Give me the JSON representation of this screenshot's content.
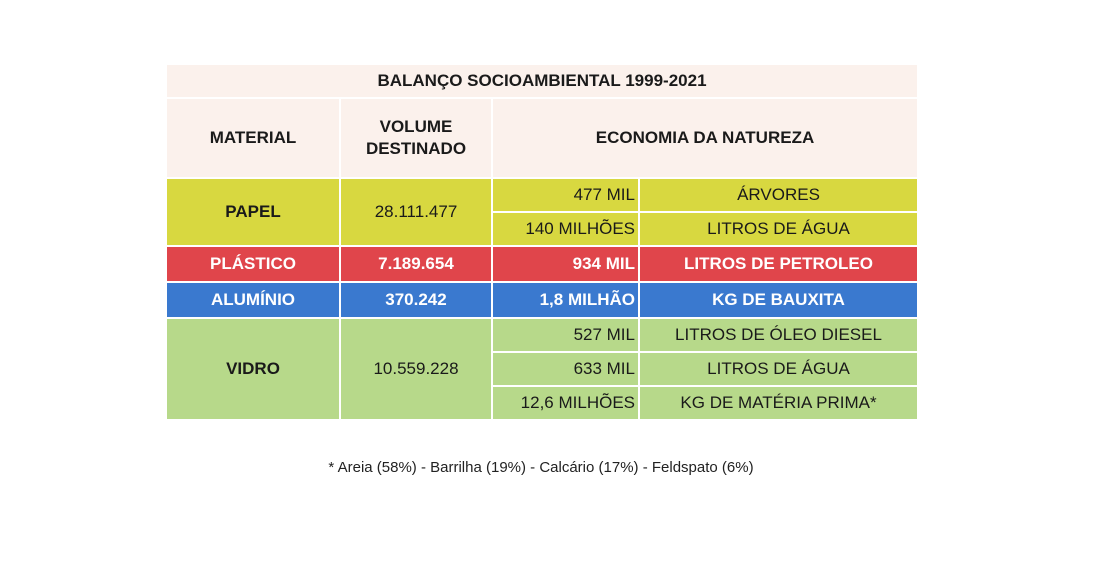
{
  "table": {
    "title": "BALANÇO SOCIOAMBIENTAL 1999-2021",
    "headers": {
      "material": "MATERIAL",
      "volume": "VOLUME DESTINADO",
      "economia": "ECONOMIA DA NATUREZA"
    },
    "rows": [
      {
        "material": "PAPEL",
        "volume": "28.111.477",
        "color": "#d8d840",
        "savings": [
          {
            "amount": "477 MIL",
            "unit": "ÁRVORES"
          },
          {
            "amount": "140 MILHÕES",
            "unit": "LITROS DE ÁGUA"
          }
        ]
      },
      {
        "material": "PLÁSTICO",
        "volume": "7.189.654",
        "color": "#e0454b",
        "savings": [
          {
            "amount": "934 MIL",
            "unit": "LITROS DE PETROLEO"
          }
        ]
      },
      {
        "material": "ALUMÍNIO",
        "volume": "370.242",
        "color": "#3a79cf",
        "savings": [
          {
            "amount": "1,8 MILHÃO",
            "unit": "KG DE BAUXITA"
          }
        ]
      },
      {
        "material": "VIDRO",
        "volume": "10.559.228",
        "color": "#b7d98a",
        "savings": [
          {
            "amount": "527 MIL",
            "unit": "LITROS DE ÓLEO DIESEL"
          },
          {
            "amount": "633 MIL",
            "unit": "LITROS DE ÁGUA"
          },
          {
            "amount": "12,6 MILHÕES",
            "unit": "KG DE MATÉRIA PRIMA*"
          }
        ]
      }
    ],
    "footnote": "* Areia (58%) - Barrilha (19%) - Calcário (17%) - Feldspato (6%)"
  }
}
